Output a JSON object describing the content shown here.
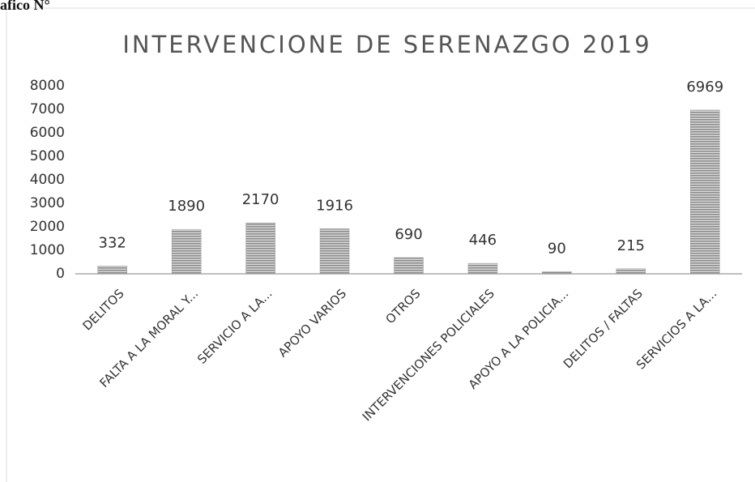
{
  "header": {
    "label": "afico N°"
  },
  "chart_data": {
    "type": "bar",
    "title": "INTERVENCIONE DE SERENAZGO 2019",
    "categories": [
      "DELITOS",
      "FALTA A LA MORAL Y...",
      "SERVICIO A LA...",
      "APOYO VARIOS",
      "OTROS",
      "INTERVENCIONES POLICIALES",
      "APOYO A LA POLICIA...",
      "DELITOS / FALTAS",
      "SERVICIOS A LA..."
    ],
    "values": [
      332,
      1890,
      2170,
      1916,
      690,
      446,
      90,
      215,
      6969
    ],
    "color": "#8a8a8a",
    "ylim": [
      0,
      8000
    ],
    "yticks": [
      0,
      1000,
      2000,
      3000,
      4000,
      5000,
      6000,
      7000,
      8000
    ],
    "grid": false
  }
}
